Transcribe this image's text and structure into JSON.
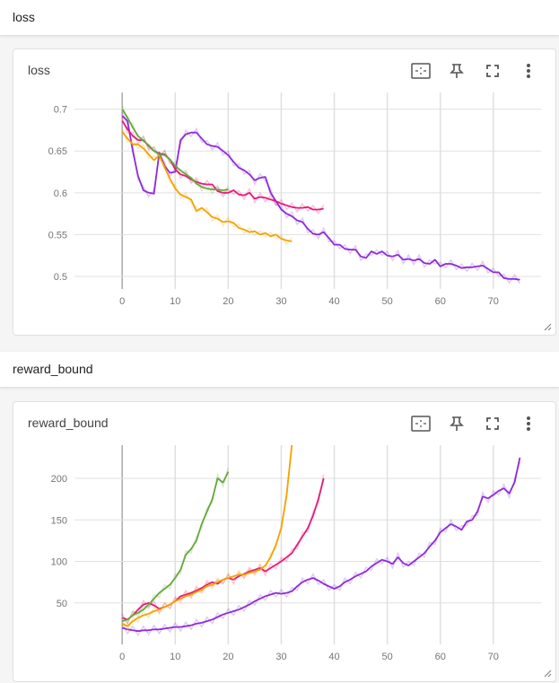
{
  "sections": [
    {
      "header": "loss",
      "card_title": "loss"
    },
    {
      "header": "reward_bound",
      "card_title": "reward_bound"
    }
  ],
  "toolbar_icons": [
    "fit-domain-icon",
    "pin-icon",
    "fullscreen-icon",
    "more-vert-icon"
  ],
  "colors": {
    "purple": "#8e2bd8",
    "pink": "#e7197a",
    "orange": "#f4a300",
    "green": "#66a83b"
  },
  "chart_data": [
    {
      "type": "line",
      "title": "loss",
      "xlim": [
        -9,
        79
      ],
      "ylim": [
        0.485,
        0.72
      ],
      "xticks": [
        0,
        10,
        20,
        30,
        40,
        50,
        60,
        70
      ],
      "yticks": [
        0.5,
        0.55,
        0.6,
        0.65,
        0.7
      ],
      "grid": true,
      "series": [
        {
          "color": "#8e2bd8",
          "x": [
            0,
            1,
            2,
            3,
            4,
            5,
            6,
            7,
            8,
            9,
            10,
            11,
            12,
            13,
            14,
            15,
            16,
            17,
            18,
            19,
            20,
            21,
            22,
            23,
            24,
            25,
            26,
            27,
            28,
            29,
            30,
            31,
            32,
            33,
            34,
            35,
            36,
            37,
            38,
            39,
            40,
            41,
            42,
            43,
            44,
            45,
            46,
            47,
            48,
            49,
            50,
            51,
            52,
            53,
            54,
            55,
            56,
            57,
            58,
            59,
            60,
            61,
            62,
            63,
            64,
            65,
            66,
            67,
            68,
            69,
            70,
            71,
            72,
            73,
            74,
            75
          ],
          "y": [
            0.692,
            0.686,
            0.65,
            0.62,
            0.603,
            0.6,
            0.599,
            0.648,
            0.632,
            0.624,
            0.625,
            0.663,
            0.67,
            0.672,
            0.672,
            0.665,
            0.658,
            0.656,
            0.655,
            0.65,
            0.645,
            0.637,
            0.63,
            0.627,
            0.622,
            0.615,
            0.618,
            0.619,
            0.6,
            0.59,
            0.58,
            0.575,
            0.572,
            0.567,
            0.565,
            0.557,
            0.551,
            0.55,
            0.553,
            0.546,
            0.538,
            0.538,
            0.533,
            0.532,
            0.532,
            0.524,
            0.522,
            0.53,
            0.527,
            0.53,
            0.525,
            0.524,
            0.526,
            0.52,
            0.521,
            0.519,
            0.521,
            0.516,
            0.515,
            0.52,
            0.512,
            0.515,
            0.515,
            0.513,
            0.51,
            0.511,
            0.511,
            0.512,
            0.513,
            0.509,
            0.505,
            0.505,
            0.498,
            0.497,
            0.497,
            0.496
          ]
        },
        {
          "color": "#e7197a",
          "x": [
            0,
            1,
            2,
            3,
            4,
            5,
            6,
            7,
            8,
            9,
            10,
            11,
            12,
            13,
            14,
            15,
            16,
            17,
            18,
            19,
            20,
            21,
            22,
            23,
            24,
            25,
            26,
            27,
            28,
            29,
            30,
            31,
            32,
            33,
            34,
            35,
            36,
            37,
            38
          ],
          "y": [
            0.686,
            0.676,
            0.668,
            0.663,
            0.663,
            0.656,
            0.65,
            0.647,
            0.646,
            0.64,
            0.628,
            0.622,
            0.62,
            0.616,
            0.613,
            0.611,
            0.61,
            0.61,
            0.602,
            0.6,
            0.6,
            0.603,
            0.598,
            0.597,
            0.6,
            0.593,
            0.595,
            0.594,
            0.592,
            0.59,
            0.587,
            0.585,
            0.583,
            0.582,
            0.582,
            0.583,
            0.58,
            0.58,
            0.581
          ]
        },
        {
          "color": "#f4a300",
          "x": [
            0,
            1,
            2,
            3,
            4,
            5,
            6,
            7,
            8,
            9,
            10,
            11,
            12,
            13,
            14,
            15,
            16,
            17,
            18,
            19,
            20,
            21,
            22,
            23,
            24,
            25,
            26,
            27,
            28,
            29,
            30,
            31,
            32
          ],
          "y": [
            0.673,
            0.665,
            0.658,
            0.658,
            0.653,
            0.646,
            0.639,
            0.645,
            0.63,
            0.617,
            0.605,
            0.598,
            0.595,
            0.592,
            0.578,
            0.582,
            0.577,
            0.571,
            0.569,
            0.565,
            0.566,
            0.564,
            0.558,
            0.556,
            0.553,
            0.554,
            0.55,
            0.552,
            0.548,
            0.55,
            0.545,
            0.543,
            0.542
          ]
        },
        {
          "color": "#66a83b",
          "x": [
            0,
            1,
            2,
            3,
            4,
            5,
            6,
            7,
            8,
            9,
            10,
            11,
            12,
            13,
            14,
            15,
            16,
            17,
            18,
            19,
            20
          ],
          "y": [
            0.7,
            0.69,
            0.678,
            0.668,
            0.662,
            0.657,
            0.65,
            0.646,
            0.645,
            0.64,
            0.632,
            0.627,
            0.622,
            0.618,
            0.611,
            0.607,
            0.605,
            0.604,
            0.604,
            0.603,
            0.604
          ]
        }
      ]
    },
    {
      "type": "line",
      "title": "reward_bound",
      "xlim": [
        -9,
        79
      ],
      "ylim": [
        0,
        240
      ],
      "xticks": [
        0,
        10,
        20,
        30,
        40,
        50,
        60,
        70
      ],
      "yticks": [
        50,
        100,
        150,
        200
      ],
      "grid": true,
      "series": [
        {
          "color": "#8e2bd8",
          "x": [
            0,
            1,
            2,
            3,
            4,
            5,
            6,
            7,
            8,
            9,
            10,
            11,
            12,
            13,
            14,
            15,
            16,
            17,
            18,
            19,
            20,
            21,
            22,
            23,
            24,
            25,
            26,
            27,
            28,
            29,
            30,
            31,
            32,
            33,
            34,
            35,
            36,
            37,
            38,
            39,
            40,
            41,
            42,
            43,
            44,
            45,
            46,
            47,
            48,
            49,
            50,
            51,
            52,
            53,
            54,
            55,
            56,
            57,
            58,
            59,
            60,
            61,
            62,
            63,
            64,
            65,
            66,
            67,
            68,
            69,
            70,
            71,
            72,
            73,
            74,
            75
          ],
          "y": [
            20,
            18,
            17,
            16,
            17,
            17,
            18,
            18,
            19,
            20,
            21,
            21,
            22,
            23,
            25,
            26,
            28,
            30,
            33,
            36,
            38,
            40,
            42,
            45,
            48,
            52,
            55,
            58,
            60,
            62,
            61,
            62,
            64,
            70,
            75,
            78,
            80,
            77,
            73,
            70,
            67,
            70,
            75,
            78,
            82,
            85,
            88,
            94,
            98,
            102,
            100,
            97,
            105,
            98,
            95,
            100,
            105,
            110,
            118,
            125,
            135,
            140,
            145,
            142,
            138,
            148,
            150,
            160,
            178,
            176,
            180,
            185,
            188,
            182,
            195,
            225
          ]
        },
        {
          "color": "#e7197a",
          "x": [
            0,
            1,
            2,
            3,
            4,
            5,
            6,
            7,
            8,
            9,
            10,
            11,
            12,
            13,
            14,
            15,
            16,
            17,
            18,
            19,
            20,
            21,
            22,
            23,
            24,
            25,
            26,
            27,
            28,
            29,
            30,
            31,
            32,
            33,
            34,
            35,
            36,
            37,
            38
          ],
          "y": [
            32,
            30,
            35,
            42,
            48,
            50,
            47,
            43,
            45,
            48,
            52,
            58,
            60,
            62,
            65,
            68,
            72,
            75,
            73,
            78,
            80,
            78,
            82,
            85,
            88,
            90,
            92,
            88,
            92,
            96,
            100,
            105,
            110,
            120,
            130,
            140,
            155,
            175,
            200
          ]
        },
        {
          "color": "#f4a300",
          "x": [
            0,
            1,
            2,
            3,
            4,
            5,
            6,
            7,
            8,
            9,
            10,
            11,
            12,
            13,
            14,
            15,
            16,
            17,
            18,
            19,
            20,
            21,
            22,
            23,
            24,
            25,
            26,
            27,
            28,
            29,
            30,
            31,
            32
          ],
          "y": [
            25,
            22,
            28,
            32,
            35,
            37,
            40,
            42,
            45,
            48,
            52,
            55,
            58,
            60,
            63,
            66,
            70,
            72,
            75,
            78,
            80,
            82,
            84,
            84,
            86,
            88,
            90,
            95,
            105,
            120,
            140,
            180,
            240
          ]
        },
        {
          "color": "#66a83b",
          "x": [
            0,
            1,
            2,
            3,
            4,
            5,
            6,
            7,
            8,
            9,
            10,
            11,
            12,
            13,
            14,
            15,
            16,
            17,
            18,
            19,
            20
          ],
          "y": [
            28,
            30,
            35,
            38,
            42,
            48,
            55,
            62,
            67,
            72,
            80,
            90,
            108,
            115,
            125,
            145,
            160,
            175,
            200,
            195,
            208
          ]
        }
      ]
    }
  ]
}
